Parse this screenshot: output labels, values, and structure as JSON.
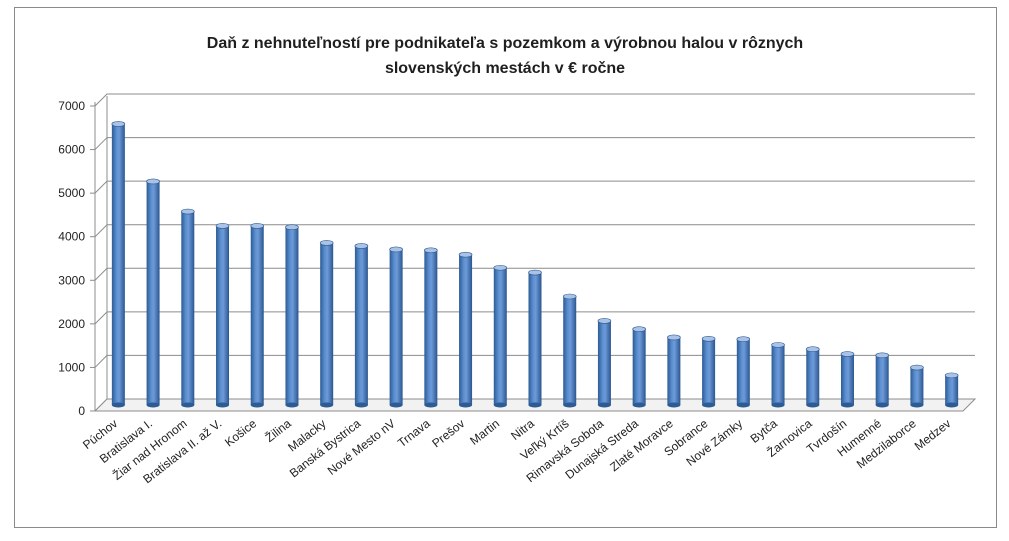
{
  "chart_data": {
    "type": "bar",
    "title_lines": [
      "Daň z nehnuteľností pre podnikateľa s pozemkom a výrobnou halou v rôznych",
      "slovenských mestách v € ročne"
    ],
    "categories": [
      "Púchov",
      "Bratislava I.",
      "Žiar nad Hronom",
      "Bratislava II. až V.",
      "Košice",
      "Žilina",
      "Malacky",
      "Banská Bystrica",
      "Nové Mesto nV",
      "Trnava",
      "Prešov",
      "Martin",
      "Nitra",
      "Veľký Krtíš",
      "Rimavská Sobota",
      "Dunajská Streda",
      "Zlaté Moravce",
      "Sobrance",
      "Nové Zámky",
      "Bytča",
      "Žarnovica",
      "Tvrdošín",
      "Humenné",
      "Medzilaborce",
      "Medzev"
    ],
    "values": [
      6450,
      5130,
      4440,
      4110,
      4110,
      4080,
      3720,
      3650,
      3570,
      3550,
      3450,
      3150,
      3040,
      2490,
      1930,
      1740,
      1550,
      1520,
      1510,
      1380,
      1280,
      1170,
      1140,
      860,
      680
    ],
    "y_ticks": [
      "0",
      "1000",
      "2000",
      "3000",
      "4000",
      "5000",
      "6000",
      "7000"
    ],
    "ylim": [
      0,
      7000
    ],
    "grid": true,
    "legend": "none",
    "colors": {
      "bar": "#4f81bd",
      "bar_dark": "#2d5b94",
      "bar_light": "#a9c2e6",
      "grid": "#8c8c8c"
    }
  }
}
